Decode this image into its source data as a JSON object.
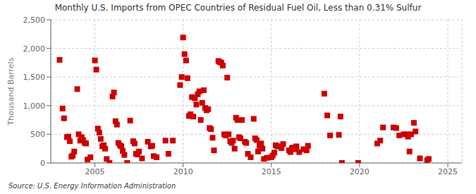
{
  "chart_data": {
    "type": "scatter",
    "title": "Monthly U.S. Imports from OPEC Countries of Residual Fuel Oil, Less than 0.31% Sulfur",
    "ylabel": "Thousand Barrels",
    "annotation": "Source: U.S. Energy Information Administration",
    "color": "#cc0000",
    "marker": "square",
    "grid": true,
    "xlim": [
      2002.5,
      2025.8
    ],
    "ylim": [
      0,
      2500
    ],
    "xticks": [
      2005,
      2010,
      2015,
      2020,
      2025
    ],
    "yticks": [
      0,
      500,
      {
        "value": 1000,
        "label": "1,000"
      },
      {
        "value": 1500,
        "label": "1,500"
      },
      {
        "value": 2000,
        "label": "2,000"
      },
      {
        "value": 2500,
        "label": "2,500"
      }
    ],
    "x": [
      2003.0,
      2003.17,
      2003.25,
      2003.42,
      2003.5,
      2003.58,
      2003.67,
      2003.75,
      2003.83,
      2004.0,
      2004.08,
      2004.17,
      2004.25,
      2004.33,
      2004.42,
      2004.5,
      2004.58,
      2004.75,
      2005.0,
      2005.08,
      2005.17,
      2005.25,
      2005.33,
      2005.42,
      2005.5,
      2005.58,
      2005.67,
      2005.83,
      2006.0,
      2006.08,
      2006.17,
      2006.25,
      2006.33,
      2006.42,
      2006.5,
      2006.58,
      2006.67,
      2006.83,
      2007.0,
      2007.17,
      2007.25,
      2007.33,
      2007.42,
      2007.5,
      2007.67,
      2008.0,
      2008.17,
      2008.25,
      2008.33,
      2008.5,
      2009.0,
      2009.17,
      2009.42,
      2009.83,
      2009.92,
      2010.0,
      2010.08,
      2010.17,
      2010.25,
      2010.33,
      2010.42,
      2010.5,
      2010.58,
      2010.67,
      2010.75,
      2010.83,
      2010.92,
      2011.0,
      2011.08,
      2011.17,
      2011.25,
      2011.33,
      2011.42,
      2011.5,
      2011.58,
      2011.67,
      2011.75,
      2012.0,
      2012.08,
      2012.17,
      2012.25,
      2012.33,
      2012.42,
      2012.5,
      2012.58,
      2012.67,
      2012.75,
      2012.83,
      2012.92,
      2013.0,
      2013.08,
      2013.17,
      2013.25,
      2013.33,
      2013.5,
      2013.58,
      2013.67,
      2013.83,
      2014.0,
      2014.08,
      2014.17,
      2014.25,
      2014.33,
      2014.42,
      2014.5,
      2014.58,
      2014.75,
      2015.0,
      2015.08,
      2015.17,
      2015.25,
      2015.33,
      2015.5,
      2015.58,
      2015.67,
      2016.0,
      2016.08,
      2016.17,
      2016.25,
      2016.33,
      2016.42,
      2016.58,
      2016.83,
      2017.0,
      2017.08,
      2018.0,
      2018.17,
      2018.33,
      2018.83,
      2018.92,
      2019.0,
      2019.92,
      2021.0,
      2021.17,
      2021.33,
      2021.92,
      2022.08,
      2022.25,
      2022.5,
      2022.67,
      2022.75,
      2022.83,
      2022.92,
      2023.08,
      2023.17,
      2023.42,
      2023.83,
      2023.92
    ],
    "values": [
      1800,
      950,
      780,
      450,
      460,
      380,
      110,
      130,
      200,
      1290,
      500,
      390,
      450,
      400,
      350,
      340,
      60,
      100,
      1790,
      1630,
      600,
      530,
      420,
      290,
      310,
      250,
      70,
      0,
      1160,
      1230,
      730,
      670,
      350,
      310,
      290,
      210,
      140,
      0,
      740,
      380,
      340,
      160,
      150,
      200,
      80,
      370,
      290,
      300,
      120,
      100,
      390,
      160,
      390,
      1360,
      1500,
      2190,
      1900,
      1790,
      1480,
      820,
      850,
      1150,
      810,
      1130,
      1020,
      1200,
      1250,
      750,
      1050,
      1270,
      960,
      920,
      940,
      610,
      590,
      440,
      220,
      1780,
      1760,
      1750,
      1700,
      500,
      480,
      1490,
      500,
      380,
      350,
      390,
      250,
      790,
      750,
      450,
      430,
      750,
      370,
      350,
      160,
      100,
      770,
      430,
      400,
      200,
      300,
      340,
      250,
      70,
      90,
      100,
      130,
      180,
      310,
      290,
      290,
      260,
      330,
      220,
      190,
      260,
      270,
      240,
      290,
      190,
      240,
      220,
      300,
      1210,
      830,
      480,
      490,
      810,
      0,
      0,
      340,
      390,
      620,
      620,
      610,
      480,
      500,
      500,
      460,
      200,
      500,
      700,
      550,
      80,
      50,
      70
    ]
  }
}
